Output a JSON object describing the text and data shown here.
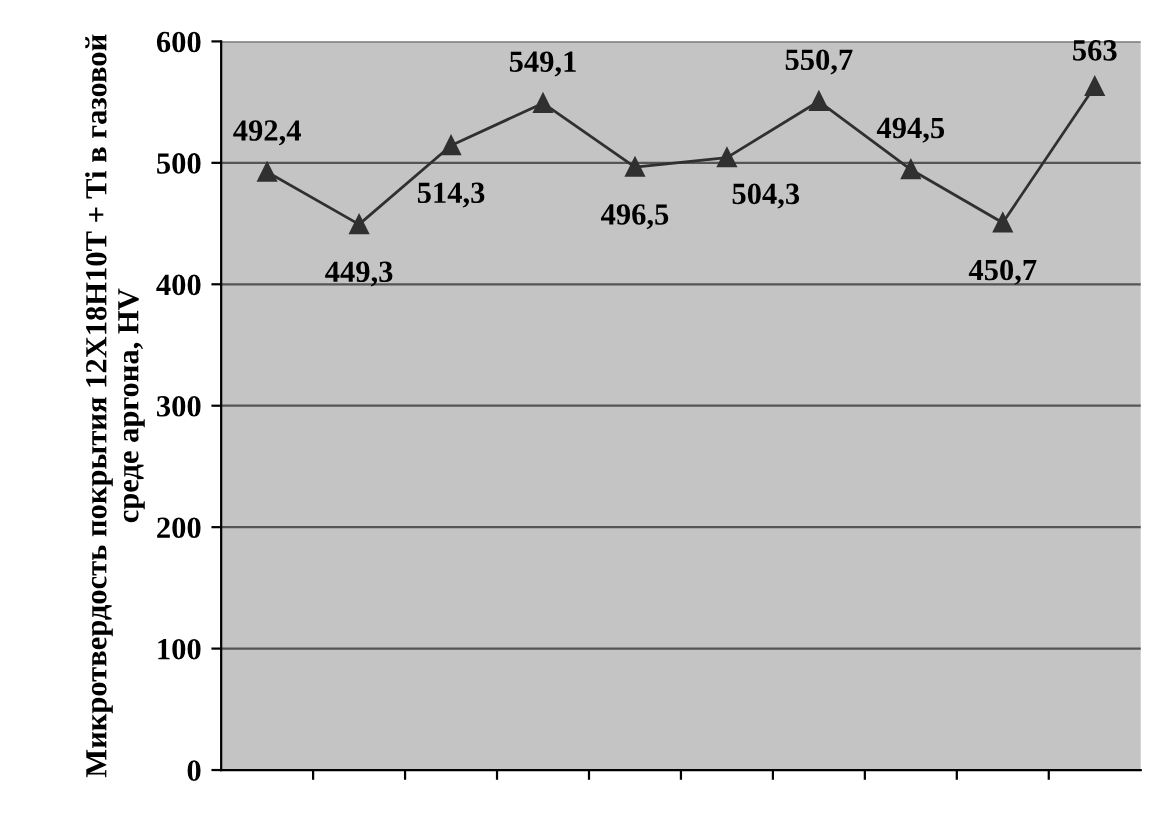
{
  "chart_data": {
    "type": "line",
    "ylabel": "Микротвердость покрытия 12Х18Н10Т + Ti в газовой среде аргона, HV",
    "categories": [
      null,
      null,
      null,
      null,
      null,
      null,
      null,
      null,
      null,
      null
    ],
    "series": [
      {
        "color": "#303030",
        "values": [
          492.4,
          449.3,
          514.3,
          549.1,
          496.5,
          504.3,
          550.7,
          494.5,
          450.7,
          563
        ],
        "value_labels": [
          "492,4",
          "449,3",
          "514,3",
          "549,1",
          "496,5",
          "504,3",
          "550,7",
          "494,5",
          "450,7",
          "563"
        ]
      }
    ],
    "ylim": [
      0,
      600
    ],
    "yticks": [
      0,
      100,
      200,
      300,
      400,
      500,
      600
    ],
    "grid": "y",
    "marker": "triangle",
    "line_style": "solid",
    "legend": false
  }
}
